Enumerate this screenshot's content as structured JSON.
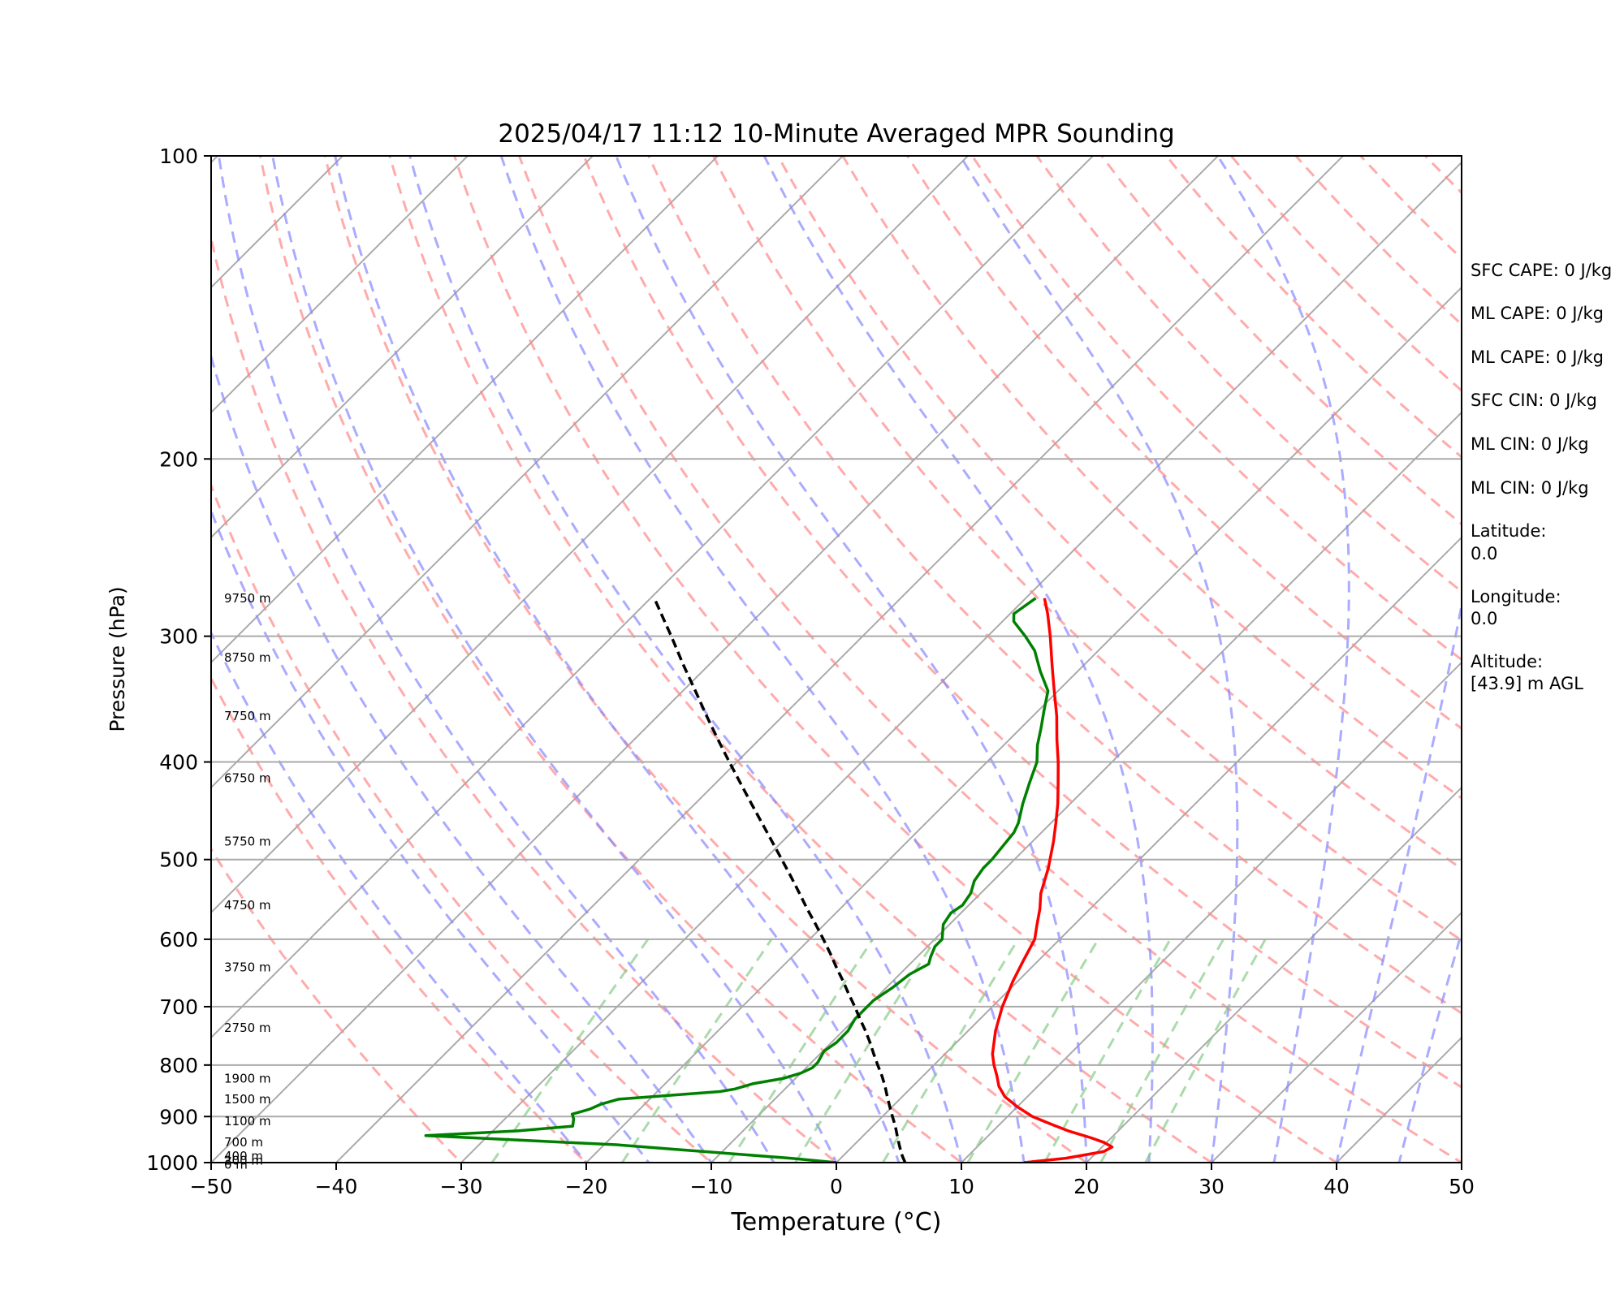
{
  "chart_data": {
    "type": "line",
    "title": "2025/04/17 11:12 10-Minute Averaged MPR Sounding",
    "xlabel": "Temperature (°C)",
    "ylabel": "Pressure (hPa)",
    "xlim": [
      -50,
      50
    ],
    "ylim": [
      1000,
      100
    ],
    "yscale": "log",
    "skew": true,
    "grid": true,
    "x_ticks": [
      -50,
      -40,
      -30,
      -20,
      -10,
      0,
      10,
      20,
      30,
      40,
      50
    ],
    "x_tick_labels": [
      "−50",
      "−40",
      "−30",
      "−20",
      "−10",
      "0",
      "10",
      "20",
      "30",
      "40",
      "50"
    ],
    "y_ticks": [
      1000,
      900,
      800,
      700,
      600,
      500,
      400,
      300,
      200,
      100
    ],
    "y_tick_labels": [
      "1000",
      "900",
      "800",
      "700",
      "600",
      "500",
      "400",
      "300",
      "200",
      "100"
    ],
    "series": [
      {
        "color": "#ff0000",
        "p": [
          1000,
          990,
          975,
          965,
          955,
          945,
          930,
          915,
          900,
          880,
          860,
          840,
          820,
          800,
          780,
          740,
          700,
          660,
          630,
          600,
          580,
          560,
          540,
          510,
          480,
          460,
          440,
          420,
          400,
          380,
          360,
          340,
          320,
          300,
          285,
          275
        ],
        "t": [
          15,
          18,
          20.5,
          20.8,
          19.8,
          18.4,
          16,
          14,
          12,
          10,
          8.2,
          6.9,
          5.9,
          4.8,
          3.8,
          2.2,
          0.8,
          -0.4,
          -1.2,
          -2.0,
          -3.0,
          -4.0,
          -5.2,
          -6.6,
          -8.3,
          -9.6,
          -11.0,
          -12.6,
          -14.3,
          -16.2,
          -18.1,
          -20.3,
          -22.6,
          -25.0,
          -27.0,
          -28.5
        ]
      },
      {
        "color": "#008000",
        "p": [
          1000,
          990,
          980,
          970,
          960,
          955,
          950,
          945,
          940,
          930,
          920,
          905,
          895,
          885,
          875,
          865,
          850,
          845,
          835,
          825,
          815,
          805,
          795,
          775,
          760,
          740,
          720,
          700,
          690,
          670,
          650,
          635,
          625,
          610,
          600,
          580,
          565,
          555,
          540,
          525,
          510,
          500,
          485,
          470,
          460,
          440,
          420,
          400,
          385,
          370,
          355,
          340,
          325,
          310,
          300,
          290,
          285,
          275
        ],
        "t": [
          0,
          -4,
          -9,
          -14,
          -19,
          -23,
          -27,
          -31,
          -35,
          -28,
          -24,
          -24.5,
          -25,
          -24,
          -23.5,
          -22.5,
          -15,
          -14,
          -13,
          -11,
          -10,
          -9.5,
          -9.5,
          -9.9,
          -9.6,
          -9.6,
          -10,
          -10,
          -10,
          -9.5,
          -9.2,
          -8.5,
          -8.9,
          -9.4,
          -9.4,
          -10.5,
          -10.8,
          -10.5,
          -10.8,
          -11.5,
          -11.8,
          -11.8,
          -12,
          -12.2,
          -12.6,
          -13.8,
          -14.9,
          -16,
          -17.3,
          -18.4,
          -19.6,
          -20.8,
          -23.0,
          -25.1,
          -27.0,
          -29.1,
          -29.7,
          -29.2
        ]
      },
      {
        "color": "#000000",
        "dashed": true,
        "p": [
          1000,
          990,
          980,
          960,
          940,
          920,
          900,
          880,
          860,
          840,
          820,
          800,
          780,
          760,
          740,
          720,
          700,
          680,
          660,
          640,
          620,
          600,
          580,
          560,
          540,
          520,
          500,
          480,
          460,
          440,
          420,
          400,
          380,
          360,
          340,
          320,
          300,
          285,
          275
        ],
        "t": [
          5.5,
          5.0,
          4.5,
          3.6,
          2.7,
          1.8,
          0.8,
          -0.2,
          -1.2,
          -2.2,
          -3.3,
          -4.5,
          -5.7,
          -6.9,
          -8.2,
          -9.6,
          -11.0,
          -12.5,
          -14.0,
          -15.6,
          -17.2,
          -18.9,
          -20.7,
          -22.6,
          -24.5,
          -26.5,
          -28.6,
          -30.8,
          -33.1,
          -35.5,
          -38.0,
          -40.6,
          -43.3,
          -46.1,
          -49.0,
          -52.1,
          -55.3,
          -57.9,
          -59.7
        ]
      }
    ],
    "height_labels": [
      "0 m",
      "200 m",
      "400 m",
      "700 m",
      "1100 m",
      "1500 m",
      "1900 m",
      "2750 m",
      "3750 m",
      "4750 m",
      "5750 m",
      "6750 m",
      "7750 m",
      "8750 m",
      "9750 m"
    ],
    "height_label_pressures": [
      1005,
      995,
      985,
      955,
      910,
      865,
      825,
      735,
      640,
      555,
      480,
      415,
      360,
      315,
      275
    ],
    "background_lines": {
      "isotherms_color": "#aaaaaa",
      "dry_adiabats_color": "#ff8888",
      "moist_adiabats_color": "#8888ff",
      "mixing_ratio_color": "#88cc88"
    }
  },
  "info_panel": {
    "lines": [
      "SFC CAPE: 0 J/kg",
      "ML CAPE: 0 J/kg",
      "ML CAPE: 0 J/kg",
      "SFC CIN: 0 J/kg",
      "ML CIN: 0 J/kg",
      "ML CIN: 0 J/kg",
      "Latitude:",
      "0.0",
      "Longitude:",
      "0.0",
      "Altitude:",
      "[43.9] m AGL"
    ]
  }
}
